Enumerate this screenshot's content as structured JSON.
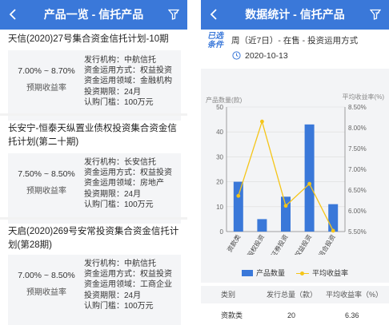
{
  "left": {
    "header": {
      "title": "产品一览 - 信托产品"
    },
    "products": [
      {
        "title": "天信(2020)27号集合资金信托计划-10期",
        "yield": "7.00% ~ 8.70%",
        "yield_label": "预期收益率",
        "issuer": "发行机构：中航信托",
        "method": "资金运用方式：权益投资",
        "field": "资金运用领域：金融机构",
        "term": "投资期限：24月",
        "min": "认购门槛：100万元"
      },
      {
        "title": "长安宁-恒泰天纵置业债权投资集合资金信托计划(第二十期)",
        "yield": "7.50% ~ 8.50%",
        "yield_label": "预期收益率",
        "issuer": "发行机构：长安信托",
        "method": "资金运用方式：权益投资",
        "field": "资金运用领域：房地产",
        "term": "投资期限：24月",
        "min": "认购门槛：100万元"
      },
      {
        "title": "天启(2020)269号安常投资集合资金信托计划(第28期)",
        "yield": "7.00% ~ 8.50%",
        "yield_label": "预期收益率",
        "issuer": "发行机构：中航信托",
        "method": "资金运用方式：权益投资",
        "field": "资金运用领域：工商企业",
        "term": "投资期限：24月",
        "min": "认购门槛：100万元"
      }
    ]
  },
  "right": {
    "header": {
      "title": "数据统计 - 信托产品"
    },
    "logo_text": "已选条件",
    "period": "周（近7日）- 在售 - 投资运用方式",
    "date": "2020-10-13",
    "table": {
      "headers": [
        "类别",
        "发行总量（款）",
        "平均收益率（%）"
      ],
      "first_row": [
        "资款类",
        "20",
        "6.36"
      ]
    }
  },
  "chart_data": {
    "type": "bar",
    "categories": [
      "资款类",
      "股权投资",
      "证券投资",
      "权益投资",
      "组合投资"
    ],
    "series": [
      {
        "name": "产品数量",
        "type": "bar",
        "axis": "left",
        "values": [
          20,
          5,
          14,
          43,
          11
        ],
        "color": "#3a78d9"
      },
      {
        "name": "平均收益率",
        "type": "line",
        "axis": "right",
        "values": [
          6.36,
          8.15,
          6.12,
          6.65,
          5.52
        ],
        "color": "#f5c518"
      }
    ],
    "ylabel_left": "产品数量(款)",
    "ylabel_right": "平均收益率(%)",
    "ylim_left": [
      0,
      50
    ],
    "yticks_left": [
      "0",
      "10",
      "20",
      "30",
      "40",
      "50"
    ],
    "ylim_right": [
      5.5,
      8.5
    ],
    "yticks_right": [
      "5.50%",
      "6.00%",
      "6.50%",
      "7.00%",
      "7.50%",
      "8.00%",
      "8.50%"
    ],
    "grid": true,
    "legend": "bottom-center"
  }
}
